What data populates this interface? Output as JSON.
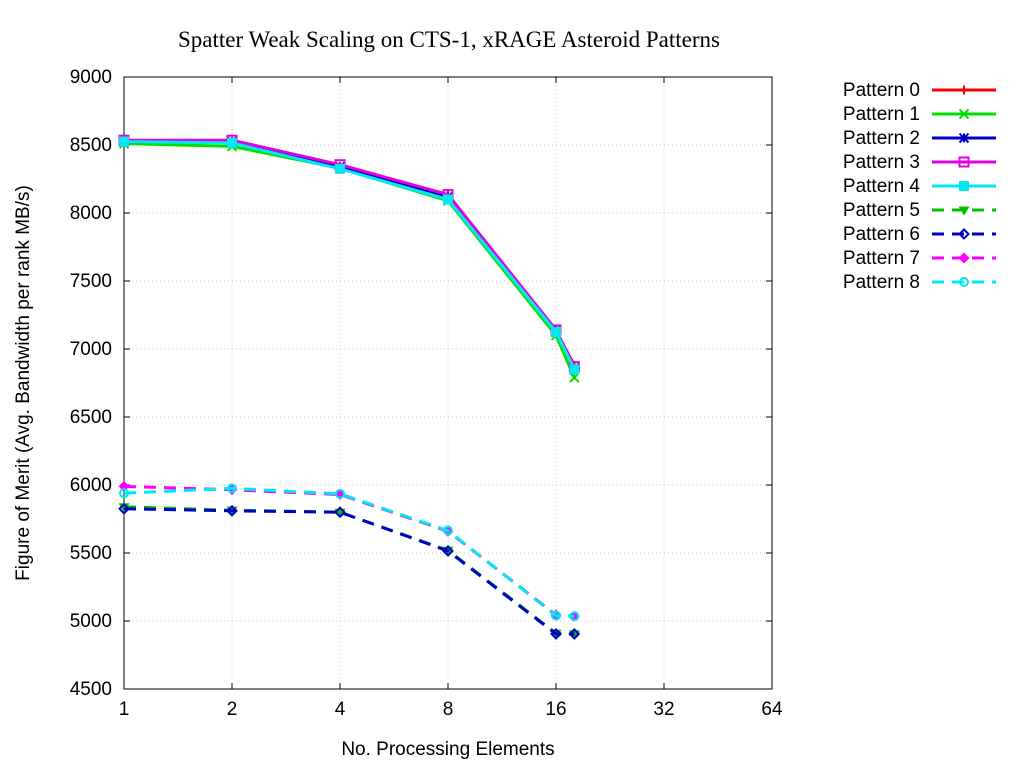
{
  "chart_data": {
    "type": "line",
    "title": "Spatter Weak Scaling on CTS-1, xRAGE Asteroid Patterns",
    "xlabel": "No. Processing Elements",
    "ylabel": "Figure of Merit (Avg. Bandwidth per rank MB/s)",
    "xscale": "log2",
    "xlim": [
      1,
      64
    ],
    "ylim": [
      4500,
      9000
    ],
    "xticks": [
      1,
      2,
      4,
      8,
      16,
      32,
      64
    ],
    "xtick_labels": [
      "1",
      "2",
      "4",
      "8",
      "16",
      "32",
      "64"
    ],
    "yticks": [
      4500,
      5000,
      5500,
      6000,
      6500,
      7000,
      7500,
      8000,
      8500,
      9000
    ],
    "ytick_labels": [
      "4500",
      "5000",
      "5500",
      "6000",
      "6500",
      "7000",
      "7500",
      "8000",
      "8500",
      "9000"
    ],
    "grid": true,
    "legend_position": "outside-right",
    "x": [
      1,
      2,
      4,
      8,
      16,
      18
    ],
    "series": [
      {
        "name": "Pattern 0",
        "color": "#ff0000",
        "dash": "solid",
        "marker": "plus",
        "values": [
          8520,
          8520,
          8330,
          8130,
          7130,
          6880
        ]
      },
      {
        "name": "Pattern 1",
        "color": "#00e000",
        "dash": "solid",
        "marker": "cross",
        "values": [
          8510,
          8490,
          8330,
          8090,
          7100,
          6790
        ]
      },
      {
        "name": "Pattern 2",
        "color": "#0000c8",
        "dash": "solid",
        "marker": "star",
        "values": [
          8525,
          8525,
          8340,
          8120,
          7135,
          6860
        ]
      },
      {
        "name": "Pattern 3",
        "color": "#e000e0",
        "dash": "solid",
        "marker": "square-open",
        "values": [
          8535,
          8535,
          8355,
          8135,
          7140,
          6870
        ]
      },
      {
        "name": "Pattern 4",
        "color": "#00e8f0",
        "dash": "solid",
        "marker": "square-filled",
        "values": [
          8525,
          8515,
          8325,
          8100,
          7125,
          6850
        ]
      },
      {
        "name": "Pattern 5",
        "color": "#00c000",
        "dash": "dashed",
        "marker": "triangle-down",
        "values": [
          5840,
          5815,
          5800,
          5520,
          4910,
          4905
        ]
      },
      {
        "name": "Pattern 6",
        "color": "#0000c8",
        "dash": "dashed",
        "marker": "diamond-open",
        "values": [
          5825,
          5810,
          5800,
          5515,
          4905,
          4905
        ]
      },
      {
        "name": "Pattern 7",
        "color": "#ff00ff",
        "dash": "dashed",
        "marker": "diamond-filled",
        "values": [
          5990,
          5965,
          5930,
          5660,
          5045,
          5035
        ]
      },
      {
        "name": "Pattern 8",
        "color": "#00e8f0",
        "dash": "dashed",
        "marker": "circle-open",
        "values": [
          5940,
          5975,
          5935,
          5665,
          5040,
          5035
        ]
      }
    ]
  }
}
